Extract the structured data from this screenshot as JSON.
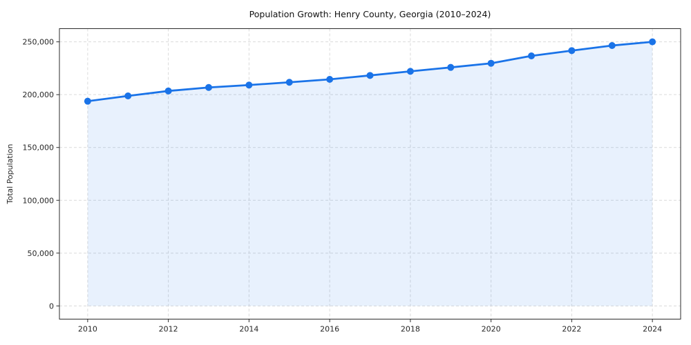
{
  "chart_data": {
    "type": "area",
    "title": "Population Growth: Henry County, Georgia (2010–2024)",
    "xlabel": "",
    "ylabel": "Total Population",
    "x": [
      2010,
      2011,
      2012,
      2013,
      2014,
      2015,
      2016,
      2017,
      2018,
      2019,
      2020,
      2021,
      2022,
      2023,
      2024
    ],
    "values": [
      193800,
      198800,
      203500,
      206800,
      209100,
      211700,
      214500,
      218200,
      222100,
      225800,
      229700,
      236700,
      241700,
      246500,
      250000
    ],
    "series_name": "Total Population",
    "xlim": [
      2009.3,
      2024.7
    ],
    "ylim": [
      -12500,
      262500
    ],
    "xticks": [
      2010,
      2012,
      2014,
      2016,
      2018,
      2020,
      2022,
      2024
    ],
    "xtick_labels": [
      "2010",
      "2012",
      "2014",
      "2016",
      "2018",
      "2020",
      "2022",
      "2024"
    ],
    "yticks": [
      0,
      50000,
      100000,
      150000,
      200000,
      250000
    ],
    "ytick_labels": [
      "0",
      "50,000",
      "100,000",
      "150,000",
      "200,000",
      "250,000"
    ],
    "grid": true,
    "grid_style": "dashed",
    "legend": "none",
    "colors": {
      "line": "#1a73e8",
      "marker": "#1a73e8",
      "fill": "rgba(26,115,232,0.10)",
      "grid": "#dadada",
      "spine": "#2b2b2b",
      "background": "#ffffff"
    }
  }
}
